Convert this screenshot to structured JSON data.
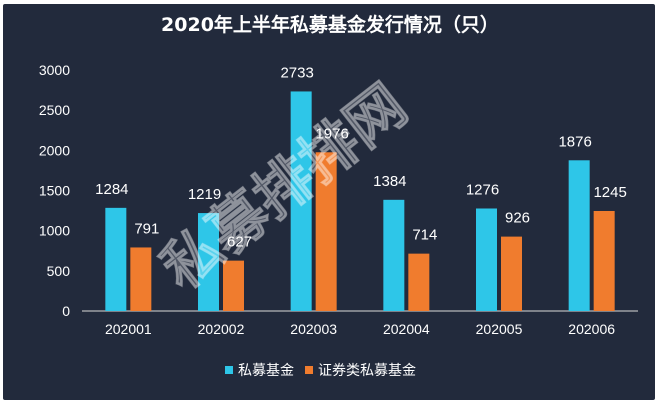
{
  "chart_data": {
    "type": "bar",
    "title": "2020年上半年私募基金发行情况（只）",
    "categories": [
      "202001",
      "202002",
      "202003",
      "202004",
      "202005",
      "202006"
    ],
    "series": [
      {
        "name": "私募基金",
        "values": [
          1284,
          1219,
          2733,
          1384,
          1276,
          1876
        ],
        "color": "#2ec6e8"
      },
      {
        "name": "证券类私募基金",
        "values": [
          791,
          627,
          1976,
          714,
          926,
          1245
        ],
        "color": "#f07c2e"
      }
    ],
    "ylim": [
      0,
      3000
    ],
    "yticks": [
      0,
      500,
      1000,
      1500,
      2000,
      2500,
      3000
    ],
    "grid": false,
    "legend_position": "bottom",
    "xlabel": "",
    "ylabel": ""
  },
  "watermark": "私募排排网",
  "colors": {
    "background": "#222a3c",
    "axis": "#d9d9d9",
    "text": "#ffffff"
  }
}
